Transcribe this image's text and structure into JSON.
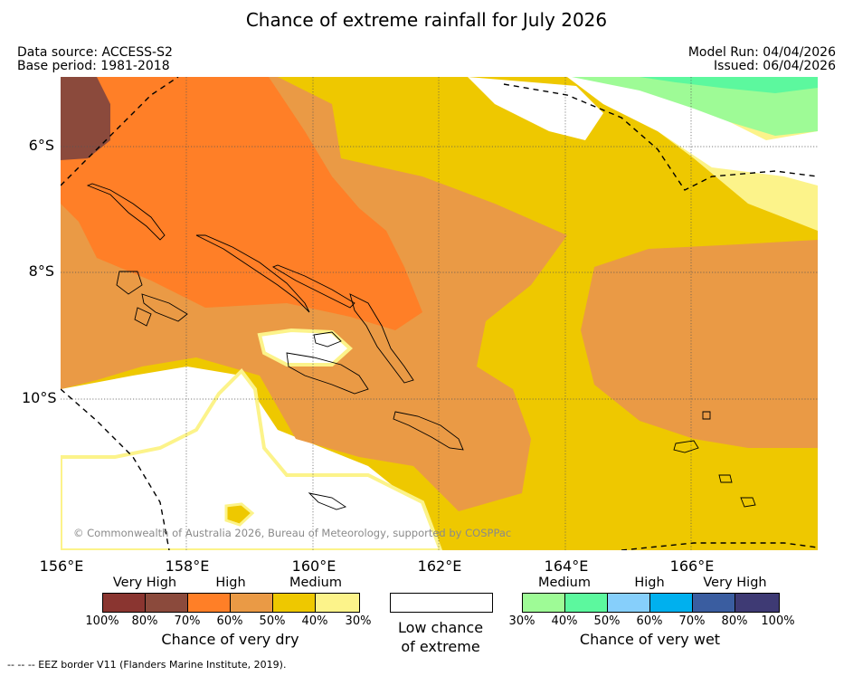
{
  "title": "Chance of extreme rainfall for July 2026",
  "meta": {
    "data_source": "Data source: ACCESS-S2",
    "base_period": "Base period: 1981-2018",
    "model_run": "Model Run: 04/04/2026",
    "issued": "Issued: 06/04/2026"
  },
  "map": {
    "copyright": "© Commonwealth of Australia 2026, Bureau of Meteorology, supported by COSPPac",
    "lat_labels": [
      "6°S",
      "8°S",
      "10°S"
    ],
    "lon_labels": [
      "156°E",
      "158°E",
      "160°E",
      "162°E",
      "164°E",
      "166°E"
    ],
    "colors": {
      "dry_very_high": "#8B4A3C",
      "dry_high": "#FF7F27",
      "dry_medium_high": "#EA9A45",
      "dry_medium": "#EEC800",
      "dry_low": "#FCF38A",
      "wet_medium": "#9EFB96",
      "wet_medium_high": "#5CF89E",
      "background": "#FFFFFF"
    }
  },
  "legend": {
    "dry": {
      "categories": [
        "Very High",
        "High",
        "Medium"
      ],
      "colors": [
        "#8A3530",
        "#8B4A3C",
        "#FF7F27",
        "#EA9A45",
        "#EEC800",
        "#FCF38A"
      ],
      "ticks": [
        "100%",
        "80%",
        "70%",
        "60%",
        "50%",
        "40%",
        "30%"
      ],
      "title": "Chance of very dry"
    },
    "low": {
      "line1": "Low chance",
      "line2": "of extreme"
    },
    "wet": {
      "categories": [
        "Medium",
        "High",
        "Very High"
      ],
      "colors": [
        "#9EFB96",
        "#5CF89E",
        "#86CFFB",
        "#00B0EE",
        "#3A5DA0",
        "#3E3A74"
      ],
      "ticks": [
        "30%",
        "40%",
        "50%",
        "60%",
        "70%",
        "80%",
        "100%"
      ],
      "title": "Chance of very wet"
    }
  },
  "footer": "--  --  -- EEZ border V11 (Flanders Marine Institute, 2019)."
}
